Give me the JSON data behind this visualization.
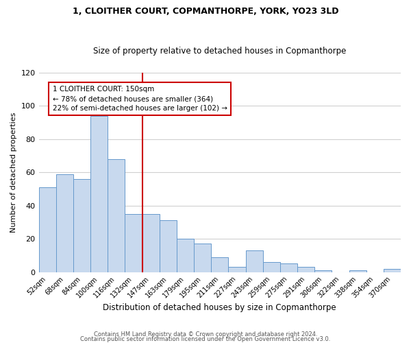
{
  "title": "1, CLOITHER COURT, COPMANTHORPE, YORK, YO23 3LD",
  "subtitle": "Size of property relative to detached houses in Copmanthorpe",
  "xlabel": "Distribution of detached houses by size in Copmanthorpe",
  "ylabel": "Number of detached properties",
  "bar_color": "#c8d9ee",
  "bar_edge_color": "#6699cc",
  "categories": [
    "52sqm",
    "68sqm",
    "84sqm",
    "100sqm",
    "116sqm",
    "132sqm",
    "147sqm",
    "163sqm",
    "179sqm",
    "195sqm",
    "211sqm",
    "227sqm",
    "243sqm",
    "259sqm",
    "275sqm",
    "291sqm",
    "306sqm",
    "322sqm",
    "338sqm",
    "354sqm",
    "370sqm"
  ],
  "values": [
    51,
    59,
    56,
    94,
    68,
    35,
    35,
    31,
    20,
    17,
    9,
    3,
    13,
    6,
    5,
    3,
    1,
    0,
    1,
    0,
    2
  ],
  "vline_index": 6,
  "vline_color": "#cc0000",
  "annotation_line1": "1 CLOITHER COURT: 150sqm",
  "annotation_line2": "← 78% of detached houses are smaller (364)",
  "annotation_line3": "22% of semi-detached houses are larger (102) →",
  "annotation_box_color": "#ffffff",
  "annotation_box_edge_color": "#cc0000",
  "ylim": [
    0,
    120
  ],
  "yticks": [
    0,
    20,
    40,
    60,
    80,
    100,
    120
  ],
  "footer_line1": "Contains HM Land Registry data © Crown copyright and database right 2024.",
  "footer_line2": "Contains public sector information licensed under the Open Government Licence v3.0.",
  "background_color": "#ffffff",
  "grid_color": "#d0d0d0"
}
